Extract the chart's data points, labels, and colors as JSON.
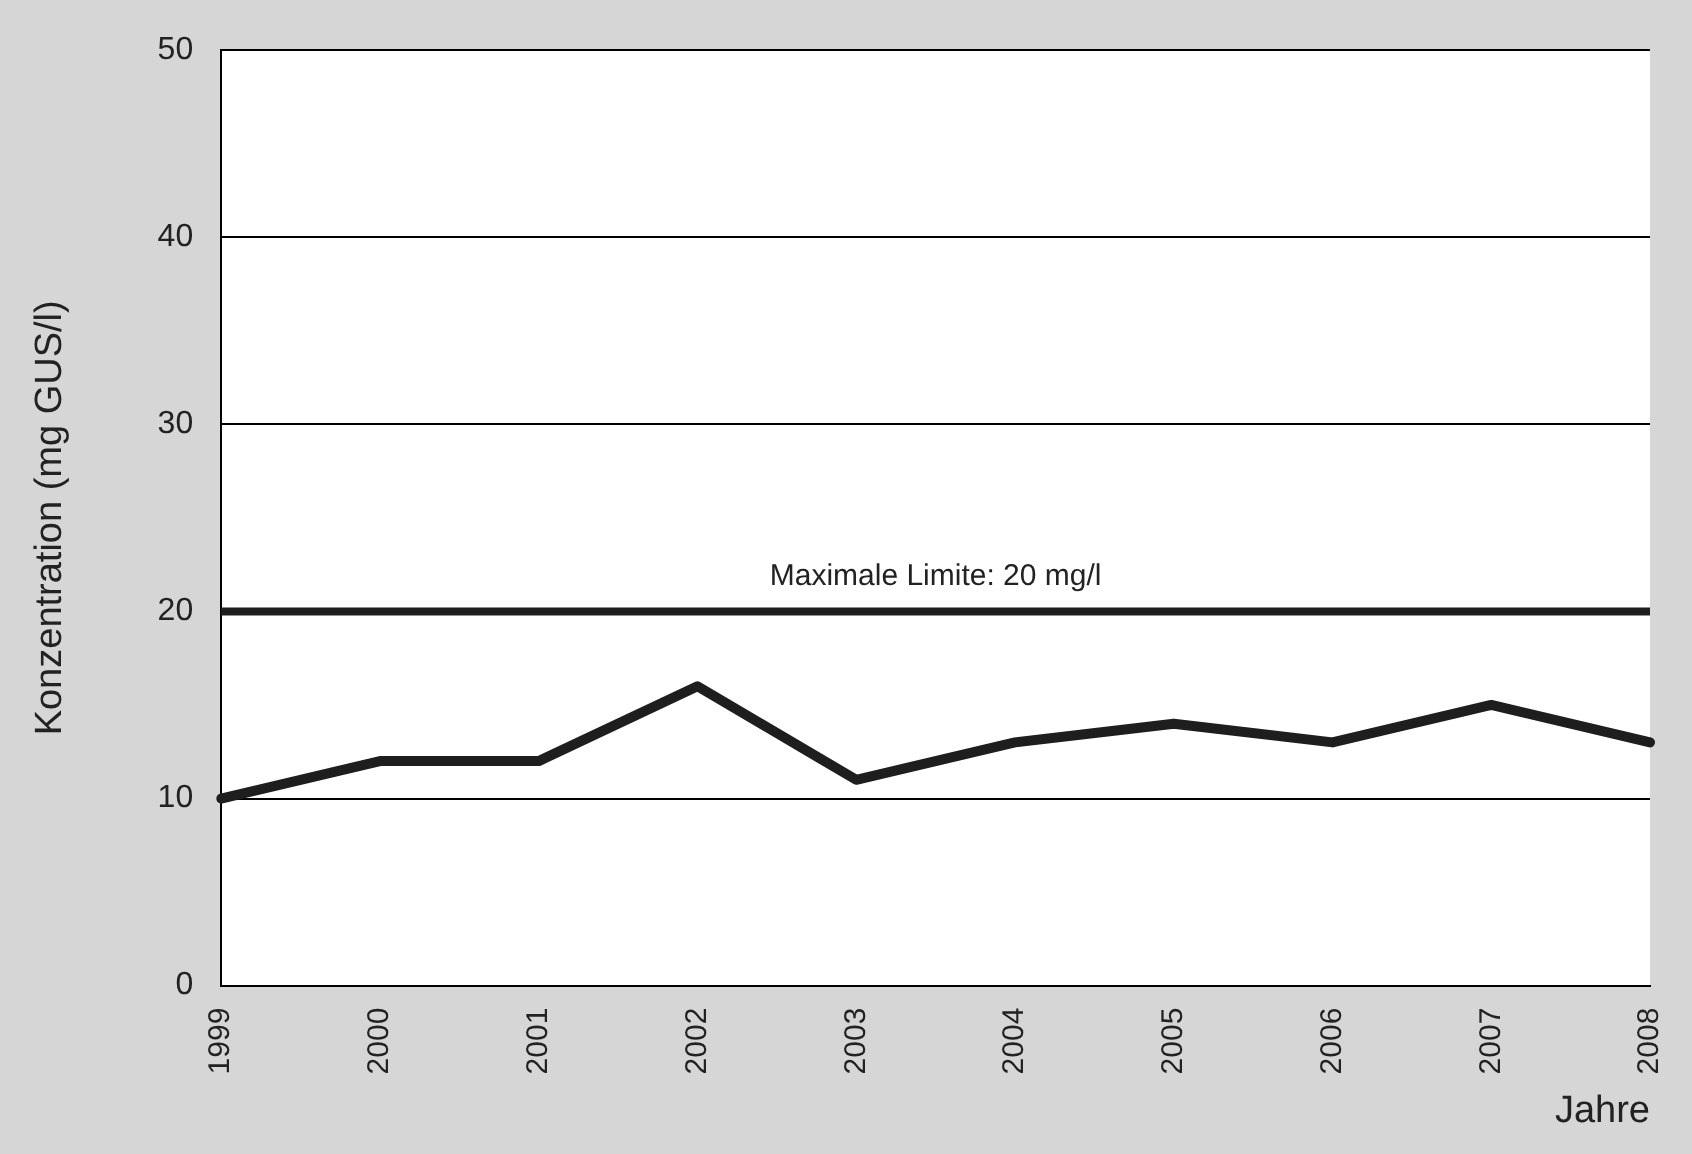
{
  "chart_data": {
    "type": "line",
    "xlabel": "Jahre",
    "ylabel": "Konzentration (mg GUS/l)",
    "categories": [
      "1999",
      "2000",
      "2001",
      "2002",
      "2003",
      "2004",
      "2005",
      "2006",
      "2007",
      "2008"
    ],
    "series": [
      {
        "color": "#1e1e1e",
        "values": [
          10,
          12,
          12,
          16,
          11,
          13,
          14,
          13,
          15,
          13
        ]
      }
    ],
    "ylim": [
      0,
      50
    ],
    "yticks": [
      0,
      10,
      20,
      30,
      40,
      50
    ],
    "grid": "y",
    "legend": false,
    "marker": "none",
    "line_style": "solid",
    "ref_lines": [
      {
        "axis": "y",
        "value": 20,
        "label": "Maximale Limite: 20 mg/l",
        "color": "#1e1e1e"
      }
    ]
  }
}
